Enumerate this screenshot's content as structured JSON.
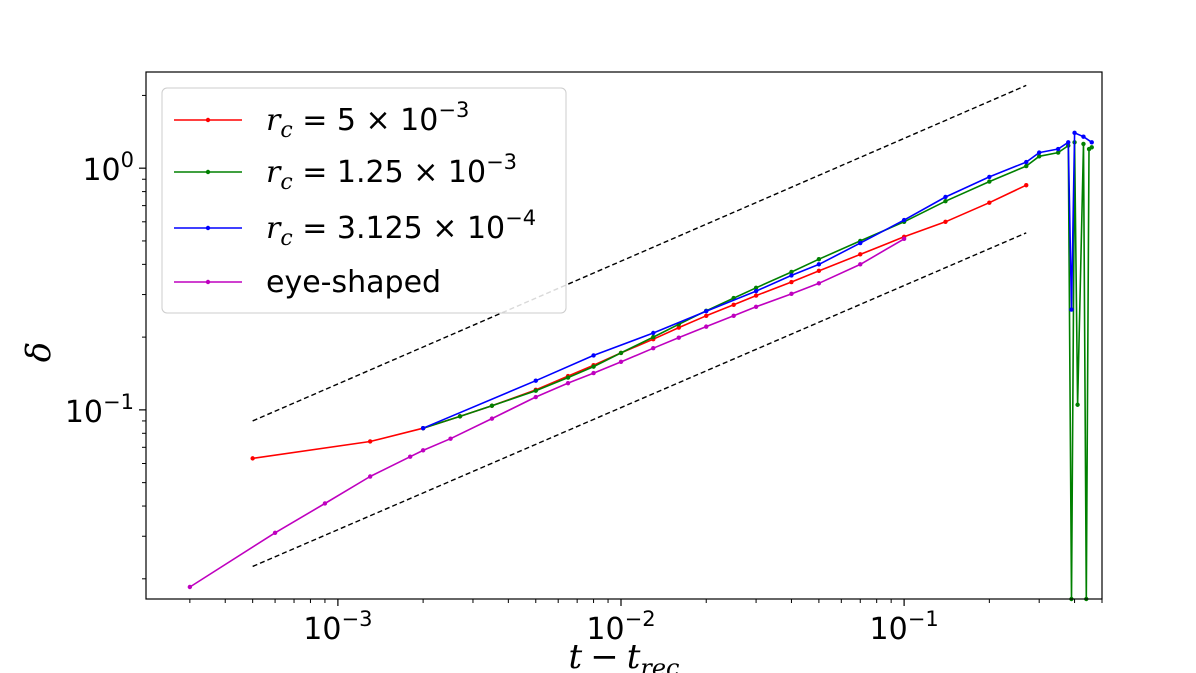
{
  "chart_data": {
    "type": "line",
    "xscale": "log",
    "yscale": "log",
    "xlim": [
      0.00021,
      0.5
    ],
    "ylim": [
      0.0165,
      2.5
    ],
    "xlabel": "t − t_rec",
    "ylabel": "δ",
    "x_ticks": [
      {
        "value": 0.001,
        "base": "10",
        "exp": "−3"
      },
      {
        "value": 0.01,
        "base": "10",
        "exp": "−2"
      },
      {
        "value": 0.1,
        "base": "10",
        "exp": "−1"
      }
    ],
    "y_ticks": [
      {
        "value": 0.1,
        "base": "10",
        "exp": "−1"
      },
      {
        "value": 1,
        "base": "10",
        "exp": "0"
      }
    ],
    "legend_position": "upper-left",
    "series": [
      {
        "name": "r_c = 5 × 10^−3",
        "legend": {
          "var": "r",
          "sub": "c",
          "rest": " = 5 × 10",
          "exp": "−3"
        },
        "color": "#ff0000",
        "x": [
          0.0005,
          0.0013,
          0.002,
          0.0027,
          0.0035,
          0.005,
          0.0065,
          0.008,
          0.01,
          0.013,
          0.016,
          0.02,
          0.025,
          0.03,
          0.04,
          0.05,
          0.07,
          0.1,
          0.14,
          0.2,
          0.27
        ],
        "y": [
          0.063,
          0.074,
          0.084,
          0.094,
          0.104,
          0.121,
          0.138,
          0.153,
          0.172,
          0.196,
          0.219,
          0.245,
          0.272,
          0.297,
          0.338,
          0.376,
          0.44,
          0.52,
          0.6,
          0.72,
          0.85
        ]
      },
      {
        "name": "r_c = 1.25 × 10^−3",
        "legend": {
          "var": "r",
          "sub": "c",
          "rest": " = 1.25 × 10",
          "exp": "−3"
        },
        "color": "#008000",
        "x": [
          0.002,
          0.0027,
          0.0035,
          0.005,
          0.0065,
          0.008,
          0.01,
          0.013,
          0.016,
          0.02,
          0.025,
          0.03,
          0.04,
          0.05,
          0.07,
          0.1,
          0.14,
          0.2,
          0.27,
          0.3,
          0.35,
          0.38,
          0.39,
          0.4,
          0.41,
          0.43,
          0.44,
          0.45,
          0.46
        ],
        "y": [
          0.084,
          0.094,
          0.104,
          0.12,
          0.136,
          0.151,
          0.172,
          0.2,
          0.226,
          0.257,
          0.29,
          0.32,
          0.372,
          0.42,
          0.5,
          0.6,
          0.73,
          0.88,
          1.02,
          1.12,
          1.16,
          1.24,
          0.0165,
          1.28,
          0.105,
          1.26,
          0.0165,
          1.2,
          1.22
        ]
      },
      {
        "name": "r_c = 3.125 × 10^−4",
        "legend": {
          "var": "r",
          "sub": "c",
          "rest": " = 3.125 × 10",
          "exp": "−4"
        },
        "color": "#0000ff",
        "x": [
          0.002,
          0.005,
          0.008,
          0.013,
          0.02,
          0.03,
          0.04,
          0.05,
          0.07,
          0.1,
          0.14,
          0.2,
          0.27,
          0.3,
          0.35,
          0.38,
          0.39,
          0.4,
          0.43,
          0.46
        ],
        "y": [
          0.084,
          0.132,
          0.168,
          0.208,
          0.256,
          0.31,
          0.36,
          0.4,
          0.49,
          0.61,
          0.76,
          0.92,
          1.06,
          1.16,
          1.2,
          1.28,
          0.26,
          1.4,
          1.35,
          1.28
        ]
      },
      {
        "name": "eye-shaped",
        "legend": {
          "text": "eye-shaped"
        },
        "color": "#bf00bf",
        "x": [
          0.0003,
          0.0006,
          0.0009,
          0.0013,
          0.0018,
          0.002,
          0.0025,
          0.0035,
          0.005,
          0.0065,
          0.008,
          0.01,
          0.013,
          0.016,
          0.02,
          0.025,
          0.03,
          0.04,
          0.05,
          0.07,
          0.1
        ],
        "y": [
          0.0185,
          0.031,
          0.041,
          0.053,
          0.064,
          0.068,
          0.076,
          0.092,
          0.113,
          0.129,
          0.142,
          0.158,
          0.18,
          0.199,
          0.221,
          0.245,
          0.267,
          0.302,
          0.334,
          0.4,
          0.51
        ]
      }
    ],
    "reference_lines": [
      {
        "style": "dashed",
        "color": "#000000",
        "x": [
          0.0005,
          0.27
        ],
        "y": [
          0.09,
          2.2
        ]
      },
      {
        "style": "dashed",
        "color": "#000000",
        "x": [
          0.0005,
          0.27
        ],
        "y": [
          0.0225,
          0.54
        ]
      }
    ]
  }
}
